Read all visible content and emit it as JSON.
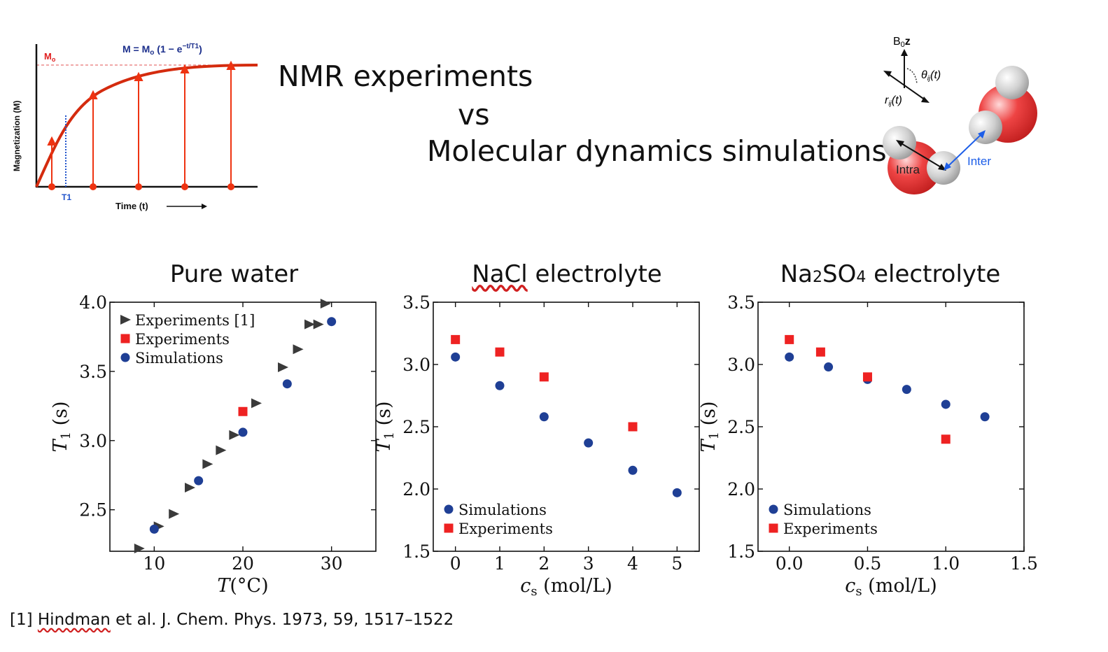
{
  "heading": {
    "line1": "NMR experiments",
    "line2": "vs",
    "line3": "Molecular dynamics simulations"
  },
  "inset_relaxation": {
    "formula": "M = Mo (1 − e−t/T1)",
    "m0_label": "Mo",
    "t1_label": "T1",
    "ylabel": "Magnetization (M)",
    "xlabel": "Time (t)"
  },
  "inset_molecules": {
    "field_label": "B0z",
    "angle_label": "θij(t)",
    "distance_label": "rij(t)",
    "intra_label": "Intra",
    "inter_label": "Inter"
  },
  "colors": {
    "experiments_ref": "#3a3a3a",
    "experiments": "#ee2222",
    "simulations": "#1f3f95",
    "curve": "#d42b0e",
    "t1_line": "#2255cc",
    "inter_arrow": "#1d5ee8"
  },
  "chart_data": [
    {
      "type": "scatter",
      "title": "Pure water",
      "xlabel": "T(°C)",
      "ylabel": "T1 (s)",
      "xlim": [
        5,
        35
      ],
      "ylim": [
        2.2,
        4.0
      ],
      "xticks": [
        10,
        20,
        30
      ],
      "yticks": [
        2.5,
        3.0,
        3.5,
        4.0
      ],
      "legend_position": "top-left",
      "series": [
        {
          "name": "Experiments [1]",
          "marker": "triangle-right",
          "x": [
            8.3,
            10.5,
            12.2,
            14.0,
            16.0,
            17.5,
            19.0,
            21.5,
            24.5,
            26.2,
            27.5,
            28.5,
            29.3
          ],
          "y": [
            2.22,
            2.38,
            2.47,
            2.66,
            2.83,
            2.93,
            3.04,
            3.27,
            3.53,
            3.66,
            3.84,
            3.84,
            3.99
          ]
        },
        {
          "name": "Experiments",
          "marker": "square",
          "x": [
            20
          ],
          "y": [
            3.21
          ]
        },
        {
          "name": "Simulations",
          "marker": "circle",
          "x": [
            10,
            15,
            20,
            25,
            30
          ],
          "y": [
            2.36,
            2.71,
            3.06,
            3.41,
            3.86
          ]
        }
      ]
    },
    {
      "type": "scatter",
      "title": "NaCl electrolyte",
      "xlabel": "cs (mol/L)",
      "ylabel": "T1 (s)",
      "xlim": [
        -0.5,
        5.5
      ],
      "ylim": [
        1.5,
        3.5
      ],
      "xticks": [
        0,
        1,
        2,
        3,
        4,
        5
      ],
      "yticks": [
        1.5,
        2.0,
        2.5,
        3.0,
        3.5
      ],
      "legend_position": "bottom-left",
      "series": [
        {
          "name": "Simulations",
          "marker": "circle",
          "x": [
            0,
            1,
            2,
            3,
            4,
            5
          ],
          "y": [
            3.06,
            2.83,
            2.58,
            2.37,
            2.15,
            1.97
          ]
        },
        {
          "name": "Experiments",
          "marker": "square",
          "x": [
            0,
            1,
            2,
            4
          ],
          "y": [
            3.2,
            3.1,
            2.9,
            2.5
          ]
        }
      ]
    },
    {
      "type": "scatter",
      "title": "Na2SO4 electrolyte",
      "xlabel": "cs (mol/L)",
      "ylabel": "T1 (s)",
      "xlim": [
        -0.2,
        1.5
      ],
      "ylim": [
        1.5,
        3.5
      ],
      "xticks": [
        0.0,
        0.5,
        1.0,
        1.5
      ],
      "yticks": [
        1.5,
        2.0,
        2.5,
        3.0,
        3.5
      ],
      "legend_position": "bottom-left",
      "series": [
        {
          "name": "Simulations",
          "marker": "circle",
          "x": [
            0.0,
            0.25,
            0.5,
            0.75,
            1.0,
            1.25
          ],
          "y": [
            3.06,
            2.98,
            2.88,
            2.8,
            2.68,
            2.58
          ]
        },
        {
          "name": "Experiments",
          "marker": "square",
          "x": [
            0.0,
            0.2,
            0.5,
            1.0
          ],
          "y": [
            3.2,
            3.1,
            2.9,
            2.4
          ]
        }
      ]
    }
  ],
  "reference": {
    "prefix": "[1] ",
    "author": "Hindman",
    "rest": " et al. J. Chem. Phys. 1973, 59, 1517–1522"
  }
}
